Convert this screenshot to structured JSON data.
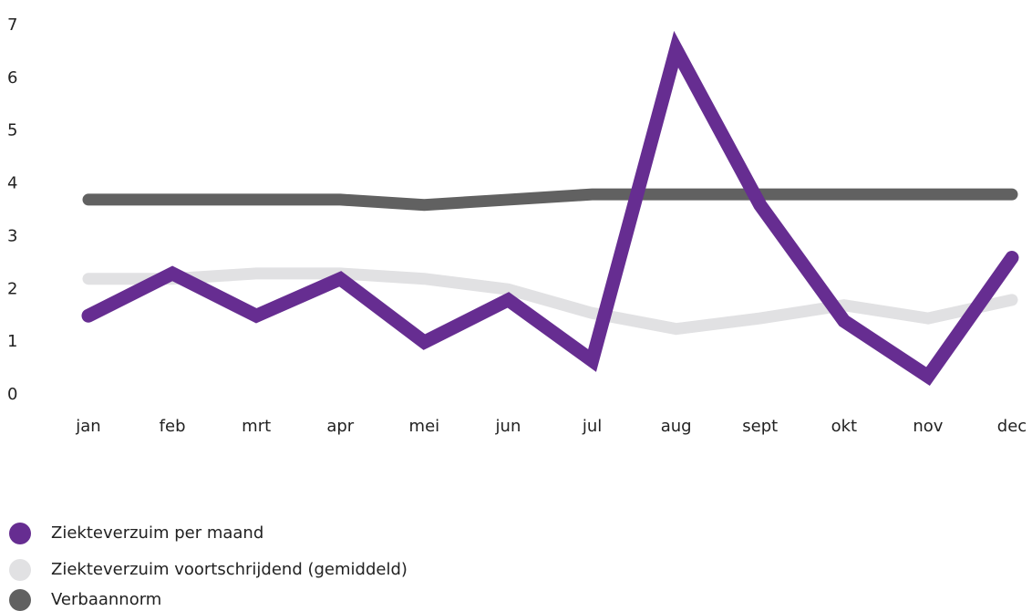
{
  "chart_data": {
    "type": "line",
    "categories": [
      "jan",
      "feb",
      "mrt",
      "apr",
      "mei",
      "jun",
      "jul",
      "aug",
      "sept",
      "okt",
      "nov",
      "dec"
    ],
    "series": [
      {
        "name": "Ziekteverzuim per maand",
        "color": "#662d91",
        "values": [
          1.5,
          2.3,
          1.5,
          2.2,
          1.0,
          1.8,
          0.65,
          6.55,
          3.6,
          1.4,
          0.35,
          2.6
        ]
      },
      {
        "name": "Ziekteverzuim voortschrijdend (gemiddeld)",
        "color": "#e1e1e3",
        "values": [
          2.2,
          2.2,
          2.3,
          2.3,
          2.2,
          2.0,
          1.55,
          1.25,
          1.45,
          1.7,
          1.45,
          1.8
        ]
      },
      {
        "name": "Verbaannorm",
        "color": "#616161",
        "values": [
          3.7,
          3.7,
          3.7,
          3.7,
          3.6,
          3.7,
          3.8,
          3.8,
          3.8,
          3.8,
          3.8,
          3.8
        ]
      }
    ],
    "ylim": [
      0,
      7
    ],
    "yticks": [
      0,
      1,
      2,
      3,
      4,
      5,
      6,
      7
    ],
    "grid": false
  }
}
